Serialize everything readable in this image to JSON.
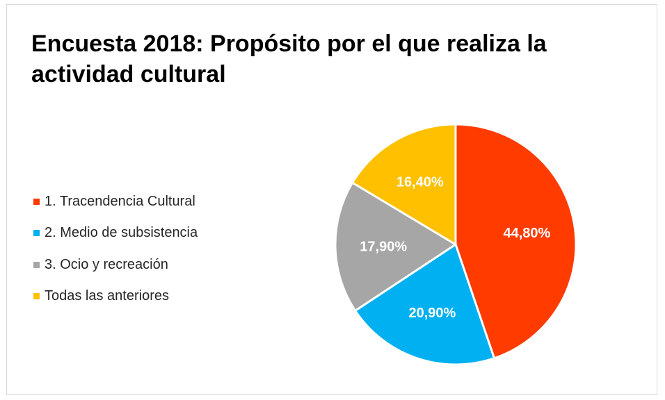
{
  "chart_data": {
    "type": "pie",
    "title": "Encuesta 2018: Propósito por el que realiza la actividad cultural",
    "categories": [
      "1. Tracendencia Cultural",
      "2. Medio de subsistencia",
      "3. Ocio y recreación",
      "Todas las anteriores"
    ],
    "values": [
      44.8,
      20.9,
      17.9,
      16.4
    ],
    "data_labels": [
      "44,80%",
      "20,90%",
      "17,90%",
      "16,40%"
    ],
    "colors": [
      "#ff3b00",
      "#00b0f0",
      "#a6a6a6",
      "#ffc000"
    ],
    "legend_position": "left"
  }
}
